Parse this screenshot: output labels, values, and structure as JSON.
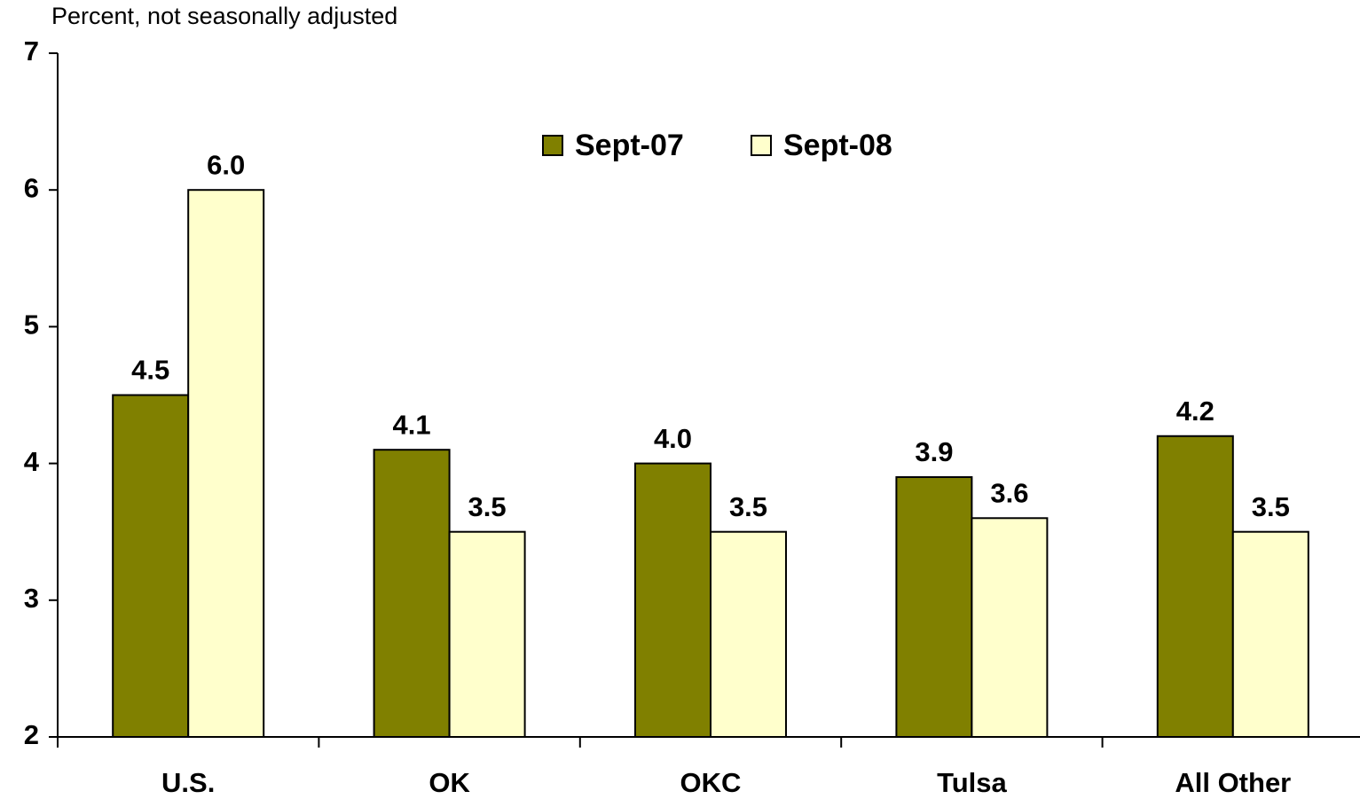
{
  "chart_data": {
    "type": "bar",
    "subtitle": "Percent, not seasonally adjusted",
    "categories": [
      "U.S.",
      "OK",
      "OKC",
      "Tulsa",
      "All Other"
    ],
    "series": [
      {
        "name": "Sept-07",
        "color": "#808000",
        "values": [
          4.5,
          4.1,
          4.0,
          3.9,
          4.2
        ],
        "value_labels": [
          "4.5",
          "4.1",
          "4.0",
          "3.9",
          "4.2"
        ]
      },
      {
        "name": "Sept-08",
        "color": "#ffffcc",
        "values": [
          6.0,
          3.5,
          3.5,
          3.6,
          3.5
        ],
        "value_labels": [
          "6.0",
          "3.5",
          "3.5",
          "3.6",
          "3.5"
        ]
      }
    ],
    "ylim": [
      2,
      7
    ],
    "yticks": [
      2,
      3,
      4,
      5,
      6,
      7
    ],
    "grid": false,
    "legend": "top"
  }
}
